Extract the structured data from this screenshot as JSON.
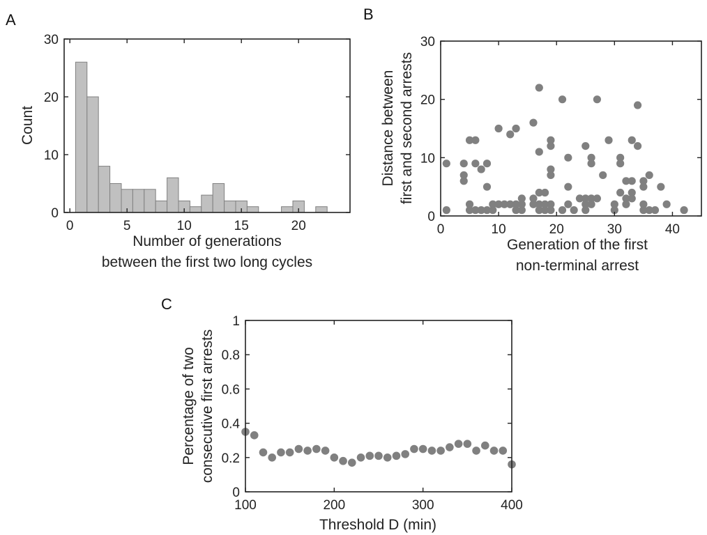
{
  "chart_data": [
    {
      "panel": "A",
      "type": "bar",
      "xlabel": [
        "Number of generations",
        "between the first two long cycles"
      ],
      "ylabel": "Count",
      "xlim": [
        -0.5,
        24.5
      ],
      "ylim": [
        0,
        30
      ],
      "xticks": [
        0,
        5,
        10,
        15,
        20
      ],
      "yticks": [
        0,
        10,
        20,
        30
      ],
      "bins": [
        {
          "center": 1,
          "value": 26
        },
        {
          "center": 2,
          "value": 20
        },
        {
          "center": 3,
          "value": 8
        },
        {
          "center": 4,
          "value": 5
        },
        {
          "center": 5,
          "value": 4
        },
        {
          "center": 6,
          "value": 4
        },
        {
          "center": 7,
          "value": 4
        },
        {
          "center": 8,
          "value": 2
        },
        {
          "center": 9,
          "value": 6
        },
        {
          "center": 10,
          "value": 2
        },
        {
          "center": 11,
          "value": 1
        },
        {
          "center": 12,
          "value": 3
        },
        {
          "center": 13,
          "value": 5
        },
        {
          "center": 14,
          "value": 2
        },
        {
          "center": 15,
          "value": 2
        },
        {
          "center": 16,
          "value": 1
        },
        {
          "center": 17,
          "value": 0
        },
        {
          "center": 18,
          "value": 0
        },
        {
          "center": 19,
          "value": 1
        },
        {
          "center": 20,
          "value": 2
        },
        {
          "center": 21,
          "value": 0
        },
        {
          "center": 22,
          "value": 1
        }
      ],
      "bar_color": "#c0c0c0",
      "edge_color": "#808080"
    },
    {
      "panel": "B",
      "type": "scatter",
      "xlabel": [
        "Generation of the first",
        "non-terminal arrest"
      ],
      "ylabel": [
        "Distance between",
        "first and second arrests"
      ],
      "xlim": [
        0,
        45
      ],
      "ylim": [
        0,
        30
      ],
      "xticks": [
        0,
        10,
        20,
        30,
        40
      ],
      "yticks": [
        0,
        10,
        20,
        30
      ],
      "points": [
        [
          1,
          9
        ],
        [
          1,
          1
        ],
        [
          4,
          9
        ],
        [
          4,
          7
        ],
        [
          4,
          6
        ],
        [
          5,
          13
        ],
        [
          5,
          2
        ],
        [
          5,
          1
        ],
        [
          6,
          13
        ],
        [
          6,
          9
        ],
        [
          6,
          1
        ],
        [
          7,
          1
        ],
        [
          7,
          8
        ],
        [
          8,
          9
        ],
        [
          8,
          1
        ],
        [
          8,
          5
        ],
        [
          9,
          1
        ],
        [
          9,
          2
        ],
        [
          10,
          15
        ],
        [
          10,
          2
        ],
        [
          11,
          2
        ],
        [
          12,
          14
        ],
        [
          12,
          2
        ],
        [
          13,
          15
        ],
        [
          13,
          2
        ],
        [
          13,
          1
        ],
        [
          14,
          3
        ],
        [
          14,
          2
        ],
        [
          14,
          1
        ],
        [
          16,
          16
        ],
        [
          16,
          3
        ],
        [
          16,
          2
        ],
        [
          17,
          22
        ],
        [
          17,
          11
        ],
        [
          17,
          4
        ],
        [
          17,
          2
        ],
        [
          17,
          1
        ],
        [
          18,
          4
        ],
        [
          18,
          2
        ],
        [
          18,
          1
        ],
        [
          19,
          13
        ],
        [
          19,
          12
        ],
        [
          19,
          8
        ],
        [
          19,
          7
        ],
        [
          19,
          2
        ],
        [
          19,
          1
        ],
        [
          21,
          20
        ],
        [
          21,
          1
        ],
        [
          22,
          10
        ],
        [
          22,
          5
        ],
        [
          22,
          2
        ],
        [
          23,
          1
        ],
        [
          24,
          3
        ],
        [
          25,
          12
        ],
        [
          25,
          3
        ],
        [
          25,
          2
        ],
        [
          25,
          1
        ],
        [
          26,
          10
        ],
        [
          26,
          9
        ],
        [
          26,
          3
        ],
        [
          26,
          2
        ],
        [
          27,
          20
        ],
        [
          27,
          3
        ],
        [
          28,
          7
        ],
        [
          29,
          13
        ],
        [
          30,
          2
        ],
        [
          30,
          1
        ],
        [
          31,
          10
        ],
        [
          31,
          9
        ],
        [
          31,
          4
        ],
        [
          32,
          6
        ],
        [
          32,
          3
        ],
        [
          32,
          2
        ],
        [
          33,
          13
        ],
        [
          33,
          6
        ],
        [
          33,
          4
        ],
        [
          33,
          3
        ],
        [
          34,
          19
        ],
        [
          34,
          12
        ],
        [
          35,
          6
        ],
        [
          35,
          5
        ],
        [
          35,
          2
        ],
        [
          35,
          1
        ],
        [
          36,
          7
        ],
        [
          36,
          1
        ],
        [
          37,
          1
        ],
        [
          38,
          5
        ],
        [
          39,
          2
        ],
        [
          42,
          1
        ]
      ],
      "marker_color": "#808080"
    },
    {
      "panel": "C",
      "type": "scatter",
      "xlabel": "Threshold D (min)",
      "ylabel": [
        "Percentage of two",
        "consecutive first arrests"
      ],
      "xlim": [
        100,
        400
      ],
      "ylim": [
        0,
        1
      ],
      "xticks": [
        100,
        200,
        300,
        400
      ],
      "yticks": [
        0,
        0.2,
        0.4,
        0.6,
        0.8,
        1
      ],
      "x": [
        100,
        110,
        120,
        130,
        140,
        150,
        160,
        170,
        180,
        190,
        200,
        210,
        220,
        230,
        240,
        250,
        260,
        270,
        280,
        290,
        300,
        310,
        320,
        330,
        340,
        350,
        360,
        370,
        380,
        390,
        400
      ],
      "y": [
        0.35,
        0.33,
        0.23,
        0.2,
        0.23,
        0.23,
        0.25,
        0.24,
        0.25,
        0.24,
        0.2,
        0.18,
        0.17,
        0.2,
        0.21,
        0.21,
        0.2,
        0.21,
        0.22,
        0.25,
        0.25,
        0.24,
        0.24,
        0.26,
        0.28,
        0.28,
        0.24,
        0.27,
        0.24,
        0.24,
        0.16
      ],
      "marker_color": "#808080"
    }
  ]
}
